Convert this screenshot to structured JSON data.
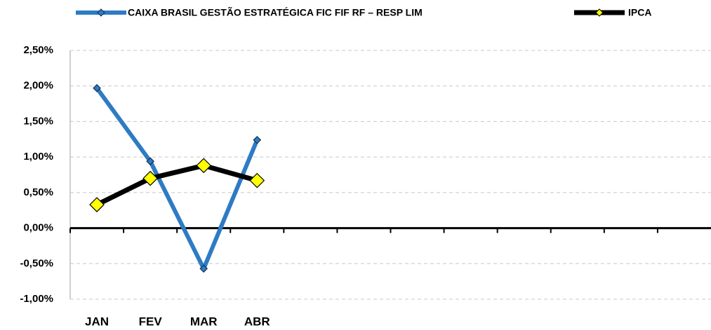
{
  "chart_data": {
    "type": "line",
    "categories": [
      "JAN",
      "FEV",
      "MAR",
      "ABR",
      null,
      null,
      null,
      null,
      null,
      null,
      null,
      null
    ],
    "series": [
      {
        "name": "CAIXA BRASIL GESTÃO ESTRATÉGICA FIC FIF RF – RESP LIM",
        "color": "#2e7bc4",
        "marker_color": "#2e7bc4",
        "values": [
          1.97,
          0.94,
          -0.57,
          1.24,
          null,
          null,
          null,
          null,
          null,
          null,
          null,
          null
        ]
      },
      {
        "name": "IPCA",
        "color": "#000000",
        "marker_color": "#ffff00",
        "values": [
          0.33,
          0.7,
          0.88,
          0.67,
          null,
          null,
          null,
          null,
          null,
          null,
          null,
          null
        ]
      }
    ],
    "ylim": [
      -1,
      2.5
    ],
    "yticks": [
      {
        "value": -1,
        "label": "-1,00%"
      },
      {
        "value": -0.5,
        "label": "-0,50%"
      },
      {
        "value": 0,
        "label": "0,00%"
      },
      {
        "value": 0.5,
        "label": "0,50%"
      },
      {
        "value": 1,
        "label": "1,00%"
      },
      {
        "value": 1.5,
        "label": "1,50%"
      },
      {
        "value": 2,
        "label": "2,00%"
      },
      {
        "value": 2.5,
        "label": "2,50%"
      }
    ],
    "grid": true
  }
}
